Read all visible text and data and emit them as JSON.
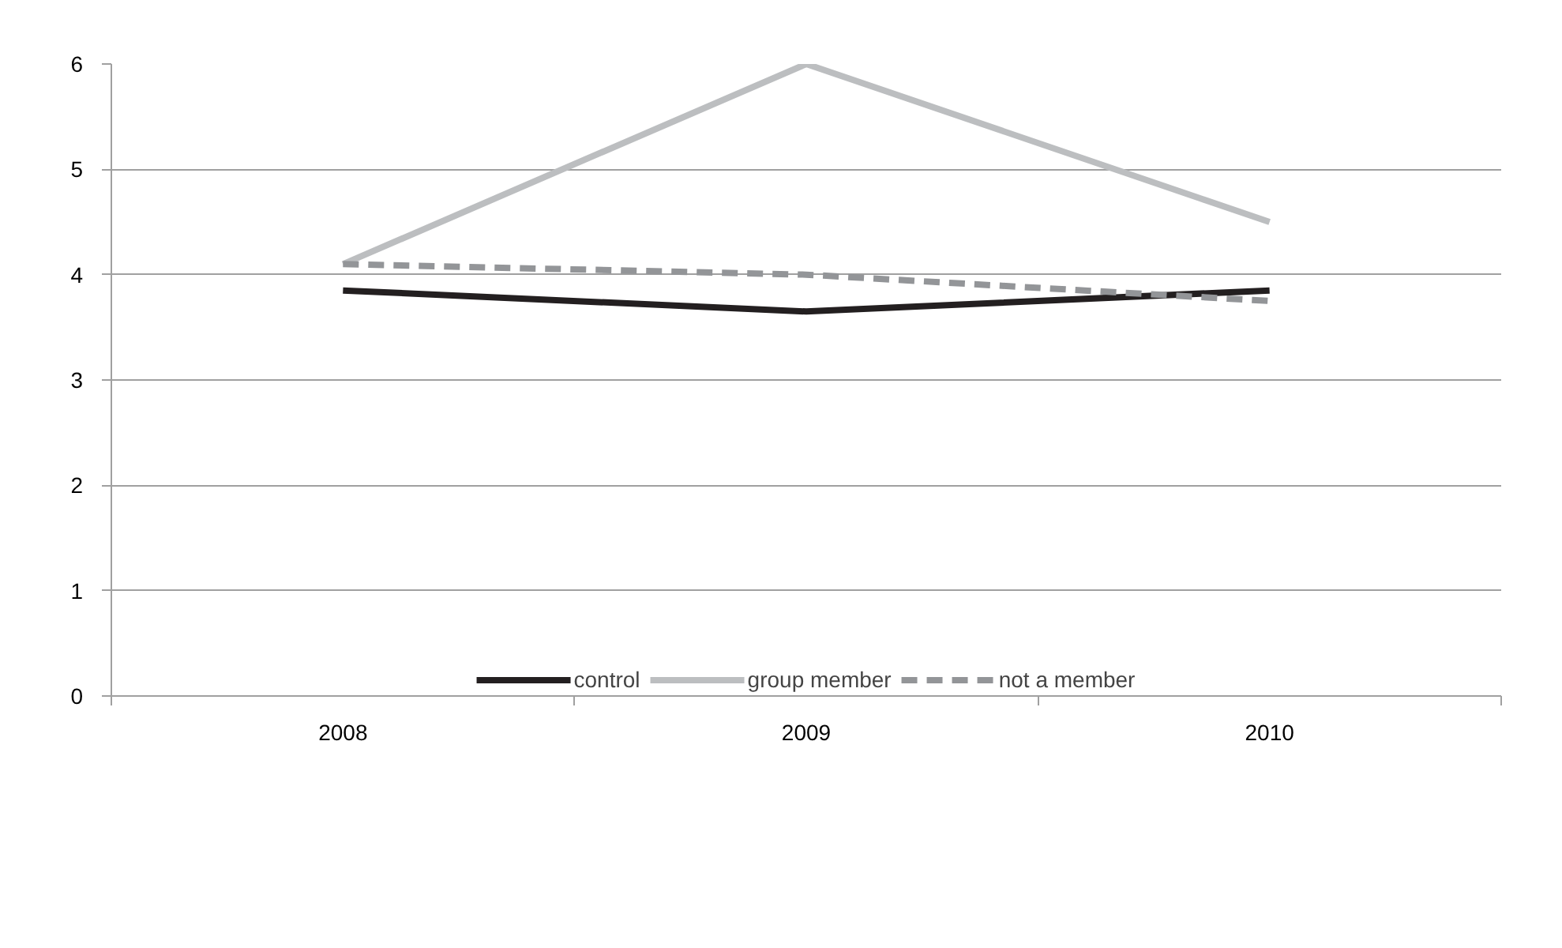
{
  "chart_data": {
    "type": "line",
    "categories": [
      "2008",
      "2009",
      "2010"
    ],
    "series": [
      {
        "name": "control",
        "color": "#231f20",
        "values": [
          3.85,
          3.65,
          3.85
        ]
      },
      {
        "name": "group member",
        "color": "#bcbec0",
        "values": [
          4.1,
          6.0,
          4.5
        ]
      },
      {
        "name": "not a member",
        "color": "#939598",
        "values": [
          4.1,
          4.0,
          3.75
        ],
        "line_style": "dashed"
      }
    ],
    "ylim": [
      0,
      6
    ],
    "yticks": [
      0,
      1,
      2,
      3,
      4,
      5,
      6
    ],
    "grid": "y",
    "legend": "bottom",
    "marker": "none",
    "line_style": "solid"
  }
}
